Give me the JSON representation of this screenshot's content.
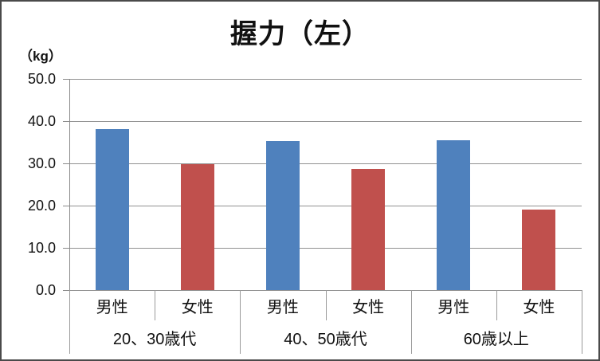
{
  "page": {
    "title": "握力（左）",
    "unit_label": "（kg）"
  },
  "chart_data": {
    "type": "bar",
    "title": "握力（左）",
    "ylabel": "（kg）",
    "xlabel": "",
    "categories": [
      "20、30歳代",
      "40、50歳代",
      "60歳以上"
    ],
    "series": [
      {
        "name": "男性",
        "color": "#4F81BD",
        "values": [
          38.1,
          35.3,
          35.4
        ]
      },
      {
        "name": "女性",
        "color": "#C0504D",
        "values": [
          29.8,
          28.7,
          19.0
        ]
      }
    ],
    "x_axis": {
      "level1": [
        "男性",
        "女性",
        "男性",
        "女性",
        "男性",
        "女性"
      ],
      "level2": [
        "20、30歳代",
        "40、50歳代",
        "60歳以上"
      ]
    },
    "ylim": [
      0,
      50
    ],
    "ytick_step": 10,
    "ytick_labels": [
      "50.0",
      "40.0",
      "30.0",
      "20.0",
      "10.0",
      "0.0"
    ],
    "grid": true,
    "legend": "none"
  }
}
